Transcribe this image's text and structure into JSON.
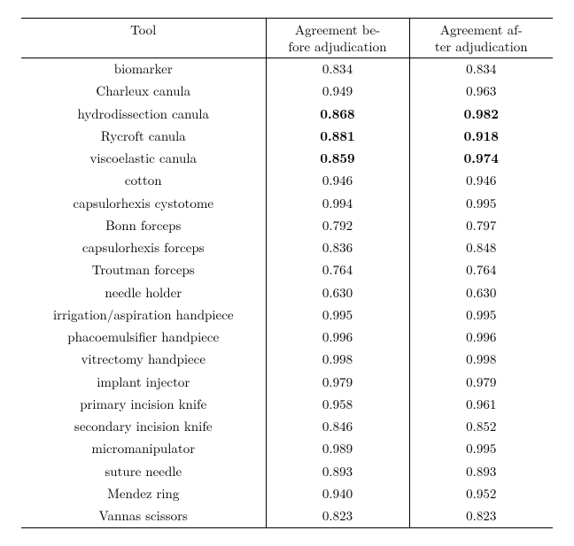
{
  "header": {
    "tool": "Tool",
    "before_l1": "Agreement be-",
    "before_l2": "fore adjudication",
    "after_l1": "Agreement af-",
    "after_l2": "ter adjudication"
  },
  "rows": [
    {
      "tool": "biomarker",
      "before": "0.834",
      "after": "0.834",
      "bold": false
    },
    {
      "tool": "Charleux canula",
      "before": "0.949",
      "after": "0.963",
      "bold": false
    },
    {
      "tool": "hydrodissection canula",
      "before": "0.868",
      "after": "0.982",
      "bold": true
    },
    {
      "tool": "Rycroft canula",
      "before": "0.881",
      "after": "0.918",
      "bold": true
    },
    {
      "tool": "viscoelastic canula",
      "before": "0.859",
      "after": "0.974",
      "bold": true
    },
    {
      "tool": "cotton",
      "before": "0.946",
      "after": "0.946",
      "bold": false
    },
    {
      "tool": "capsulorhexis cystotome",
      "before": "0.994",
      "after": "0.995",
      "bold": false
    },
    {
      "tool": "Bonn forceps",
      "before": "0.792",
      "after": "0.797",
      "bold": false
    },
    {
      "tool": "capsulorhexis forceps",
      "before": "0.836",
      "after": "0.848",
      "bold": false
    },
    {
      "tool": "Troutman forceps",
      "before": "0.764",
      "after": "0.764",
      "bold": false
    },
    {
      "tool": "needle holder",
      "before": "0.630",
      "after": "0.630",
      "bold": false
    },
    {
      "tool": "irrigation/aspiration handpiece",
      "before": "0.995",
      "after": "0.995",
      "bold": false
    },
    {
      "tool": "phacoemulsifier handpiece",
      "before": "0.996",
      "after": "0.996",
      "bold": false
    },
    {
      "tool": "vitrectomy handpiece",
      "before": "0.998",
      "after": "0.998",
      "bold": false
    },
    {
      "tool": "implant injector",
      "before": "0.979",
      "after": "0.979",
      "bold": false
    },
    {
      "tool": "primary incision knife",
      "before": "0.958",
      "after": "0.961",
      "bold": false
    },
    {
      "tool": "secondary incision knife",
      "before": "0.846",
      "after": "0.852",
      "bold": false
    },
    {
      "tool": "micromanipulator",
      "before": "0.989",
      "after": "0.995",
      "bold": false
    },
    {
      "tool": "suture needle",
      "before": "0.893",
      "after": "0.893",
      "bold": false
    },
    {
      "tool": "Mendez ring",
      "before": "0.940",
      "after": "0.952",
      "bold": false
    },
    {
      "tool": "Vannas scissors",
      "before": "0.823",
      "after": "0.823",
      "bold": false
    }
  ]
}
